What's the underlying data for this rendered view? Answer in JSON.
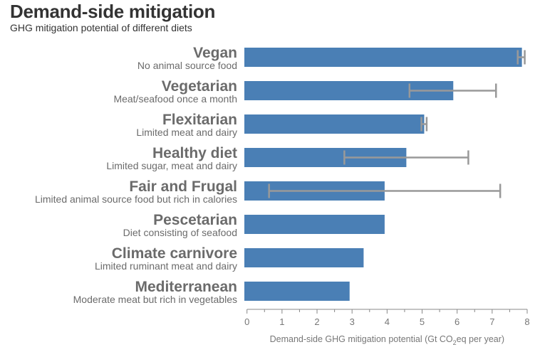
{
  "chart_data": {
    "type": "bar",
    "orientation": "horizontal",
    "title": "Demand-side mitigation",
    "subtitle": "GHG mitigation potential of different diets",
    "xlabel": "Demand-side GHG mitigation potential (Gt CO2eq per year)",
    "xlabel_parts": {
      "pre": "Demand-side GHG mitigation potential (Gt CO",
      "sub": "2",
      "post": "eq per year)"
    },
    "xlim": [
      0,
      8
    ],
    "xticks": [
      "0",
      "1",
      "2",
      "3",
      "4",
      "5",
      "6",
      "7",
      "8"
    ],
    "grid": false,
    "bar_color": "#4a7fb5",
    "error_color": "#999999",
    "categories": [
      {
        "name": "Vegan",
        "description": "No animal source food",
        "value": 7.85,
        "error": [
          7.73,
          7.93
        ]
      },
      {
        "name": "Vegetarian",
        "description": "Meat/seafood once a month",
        "value": 5.89,
        "error": [
          4.64,
          7.11
        ]
      },
      {
        "name": "Flexitarian",
        "description": "Limited meat and dairy",
        "value": 5.06,
        "error": [
          4.98,
          5.13
        ]
      },
      {
        "name": "Healthy diet",
        "description": "Limited sugar, meat and dairy",
        "value": 4.55,
        "error": [
          2.78,
          6.32
        ]
      },
      {
        "name": "Fair and Frugal",
        "description": "Limited animal source food but rich in calories",
        "value": 3.93,
        "error": [
          0.63,
          7.23
        ]
      },
      {
        "name": "Pescetarian",
        "description": "Diet consisting of seafood",
        "value": 3.93,
        "error": null
      },
      {
        "name": "Climate carnivore",
        "description": "Limited ruminant meat and dairy",
        "value": 3.33,
        "error": null
      },
      {
        "name": "Mediterranean",
        "description": "Moderate meat but rich in vegetables",
        "value": 2.93,
        "error": null
      }
    ]
  }
}
